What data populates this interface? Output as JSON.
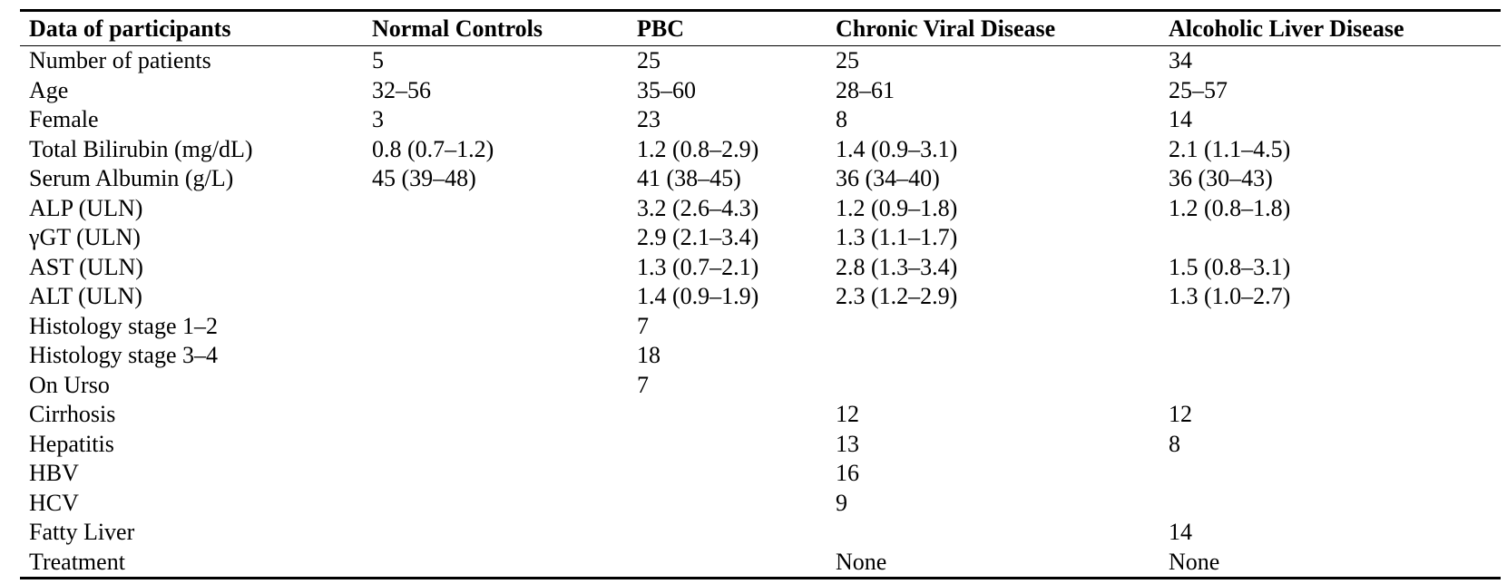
{
  "table": {
    "headers": [
      "Data of participants",
      "Normal Controls",
      "PBC",
      "Chronic Viral Disease",
      "Alcoholic Liver Disease"
    ],
    "rows": [
      [
        "Number of patients",
        "5",
        "25",
        "25",
        "34"
      ],
      [
        "Age",
        "32–56",
        "35–60",
        "28–61",
        "25–57"
      ],
      [
        "Female",
        "3",
        "23",
        "8",
        "14"
      ],
      [
        "Total Bilirubin (mg/dL)",
        "0.8 (0.7–1.2)",
        "1.2 (0.8–2.9)",
        "1.4 (0.9–3.1)",
        "2.1 (1.1–4.5)"
      ],
      [
        "Serum Albumin (g/L)",
        "45 (39–48)",
        "41 (38–45)",
        "36 (34–40)",
        "36 (30–43)"
      ],
      [
        "ALP (ULN)",
        "",
        "3.2 (2.6–4.3)",
        "1.2 (0.9–1.8)",
        "1.2 (0.8–1.8)"
      ],
      [
        "γGT (ULN)",
        "",
        "2.9 (2.1–3.4)",
        "1.3 (1.1–1.7)",
        ""
      ],
      [
        "AST (ULN)",
        "",
        "1.3 (0.7–2.1)",
        "2.8 (1.3–3.4)",
        "1.5 (0.8–3.1)"
      ],
      [
        "ALT (ULN)",
        "",
        "1.4 (0.9–1.9)",
        "2.3 (1.2–2.9)",
        "1.3 (1.0–2.7)"
      ],
      [
        "Histology stage 1–2",
        "",
        "7",
        "",
        ""
      ],
      [
        "Histology stage 3–4",
        "",
        "18",
        "",
        ""
      ],
      [
        "On Urso",
        "",
        "7",
        "",
        ""
      ],
      [
        "Cirrhosis",
        "",
        "",
        "12",
        "12"
      ],
      [
        "Hepatitis",
        "",
        "",
        "13",
        "8"
      ],
      [
        "HBV",
        "",
        "",
        "16",
        ""
      ],
      [
        "HCV",
        "",
        "",
        "9",
        ""
      ],
      [
        "Fatty Liver",
        "",
        "",
        "",
        "14"
      ],
      [
        "Treatment",
        "",
        "",
        "None",
        "None"
      ]
    ]
  }
}
